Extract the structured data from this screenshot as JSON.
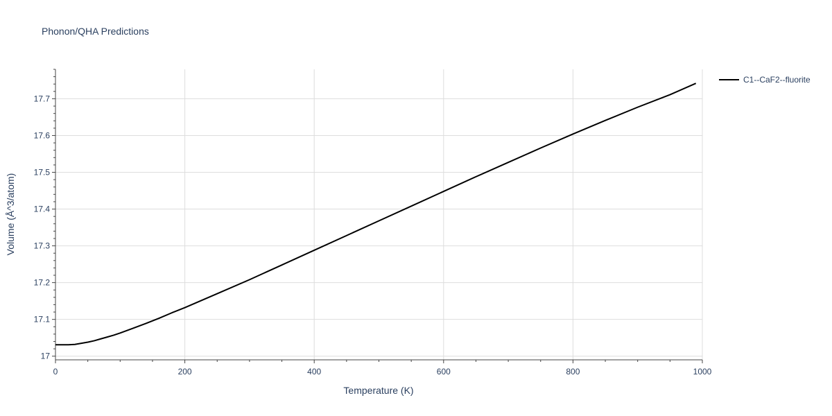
{
  "chart_data": {
    "type": "line",
    "title": "Phonon/QHA Predictions",
    "xlabel": "Temperature (K)",
    "ylabel": "Volume (Å^3/atom)",
    "xlim": [
      0,
      1000
    ],
    "ylim": [
      16.99,
      17.78
    ],
    "x_ticks": [
      0,
      200,
      400,
      600,
      800,
      1000
    ],
    "y_ticks": [
      17,
      17.1,
      17.2,
      17.3,
      17.4,
      17.5,
      17.6,
      17.7
    ],
    "grid": true,
    "legend_position": "top-right",
    "series": [
      {
        "name": "C1--CaF2--fluorite",
        "color": "#000000",
        "x": [
          0,
          10,
          20,
          30,
          40,
          50,
          60,
          70,
          80,
          90,
          100,
          120,
          140,
          160,
          180,
          200,
          250,
          300,
          350,
          400,
          450,
          500,
          550,
          600,
          650,
          700,
          750,
          800,
          850,
          900,
          950,
          990
        ],
        "y": [
          17.031,
          17.031,
          17.031,
          17.032,
          17.035,
          17.038,
          17.042,
          17.047,
          17.052,
          17.057,
          17.063,
          17.076,
          17.089,
          17.103,
          17.118,
          17.132,
          17.17,
          17.208,
          17.248,
          17.288,
          17.328,
          17.368,
          17.408,
          17.448,
          17.488,
          17.527,
          17.566,
          17.604,
          17.641,
          17.677,
          17.711,
          17.742
        ]
      }
    ]
  }
}
